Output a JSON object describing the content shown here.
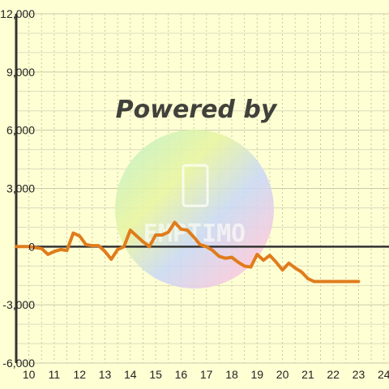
{
  "chart_data": {
    "type": "line",
    "title": "",
    "xlabel": "",
    "ylabel": "",
    "xlim": [
      9.5,
      24.2
    ],
    "ylim": [
      -6000,
      12000
    ],
    "x_ticks": [
      10,
      11,
      12,
      13,
      14,
      15,
      16,
      17,
      18,
      19,
      20,
      21,
      22,
      23,
      24
    ],
    "y_ticks": [
      -6000,
      -3000,
      0,
      3000,
      6000,
      9000,
      12000
    ],
    "x_tick_labels": [
      "10",
      "11",
      "12",
      "13",
      "14",
      "15",
      "16",
      "17",
      "18",
      "19",
      "20",
      "21",
      "22",
      "23",
      "24"
    ],
    "y_tick_labels": [
      "-6,000",
      "-3,000",
      "0",
      "3,000",
      "6,000",
      "9,000",
      "12,000"
    ],
    "grid": true,
    "series": [
      {
        "color": "#e07c1c",
        "x": [
          9.5,
          10.0,
          10.5,
          10.75,
          11.0,
          11.25,
          11.5,
          11.75,
          12.0,
          12.25,
          12.5,
          12.75,
          13.0,
          13.25,
          13.5,
          13.75,
          14.0,
          14.25,
          14.5,
          14.75,
          15.0,
          15.25,
          15.5,
          15.75,
          16.0,
          16.25,
          16.5,
          16.75,
          17.0,
          17.25,
          17.5,
          17.75,
          18.0,
          18.25,
          18.5,
          18.75,
          19.0,
          19.25,
          19.5,
          19.75,
          20.0,
          20.25,
          20.5,
          20.75,
          21.0,
          21.25,
          21.5,
          21.75,
          22.0,
          22.25,
          22.5,
          22.75,
          23.0
        ],
        "y": [
          0,
          0,
          -100,
          -400,
          -250,
          -150,
          -200,
          700,
          550,
          100,
          50,
          50,
          -250,
          -650,
          -150,
          0,
          850,
          550,
          250,
          0,
          600,
          600,
          750,
          1250,
          900,
          850,
          500,
          100,
          0,
          -200,
          -500,
          -600,
          -550,
          -800,
          -1000,
          -1050,
          -400,
          -700,
          -450,
          -800,
          -1200,
          -850,
          -1100,
          -1300,
          -1650,
          -1800,
          -1800,
          -1800,
          -1800,
          -1800,
          -1800,
          -1800,
          -1800
        ]
      }
    ],
    "watermark": {
      "text": "Powered by",
      "logo_text": "EMPTIMO"
    }
  }
}
